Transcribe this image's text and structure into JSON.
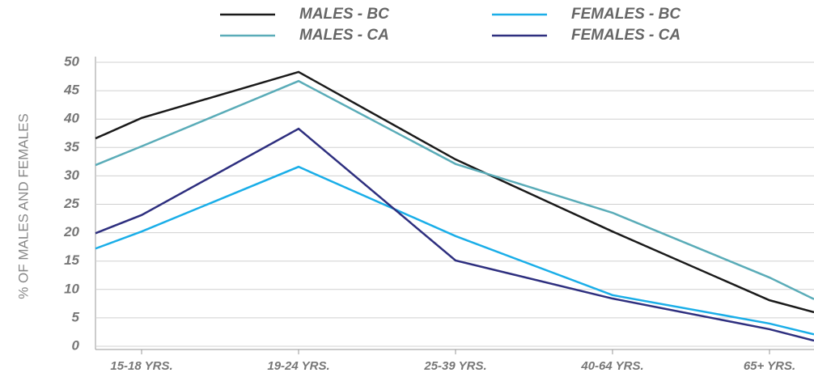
{
  "chart_data": {
    "type": "line",
    "y_label": "% OF MALES AND FEMALES",
    "categories": [
      null,
      "15-18 YRS.",
      "19-24 YRS.",
      "25-39 YRS.",
      "40-64 YRS.",
      "65+ YRS.",
      null
    ],
    "series": [
      {
        "name": "MALES - BC",
        "color": "#1a1a1a",
        "values": [
          36.6,
          40.2,
          48.3,
          32.9,
          20.2,
          8.1,
          6.0
        ]
      },
      {
        "name": "FEMALES - BC",
        "color": "#1aaee8",
        "values": [
          17.2,
          20.2,
          31.6,
          19.4,
          9.0,
          4.0,
          2.1
        ]
      },
      {
        "name": "MALES - CA",
        "color": "#5aacb8",
        "values": [
          31.9,
          35.2,
          46.7,
          32.1,
          23.5,
          12.1,
          8.3
        ]
      },
      {
        "name": "FEMALES - CA",
        "color": "#2e2f7f",
        "values": [
          19.9,
          23.1,
          38.3,
          15.1,
          8.4,
          3.0,
          1.0
        ]
      }
    ],
    "ylim": [
      0,
      50
    ],
    "yticks": [
      0,
      5,
      10,
      15,
      20,
      25,
      30,
      35,
      40,
      45,
      50
    ],
    "grid": true
  }
}
